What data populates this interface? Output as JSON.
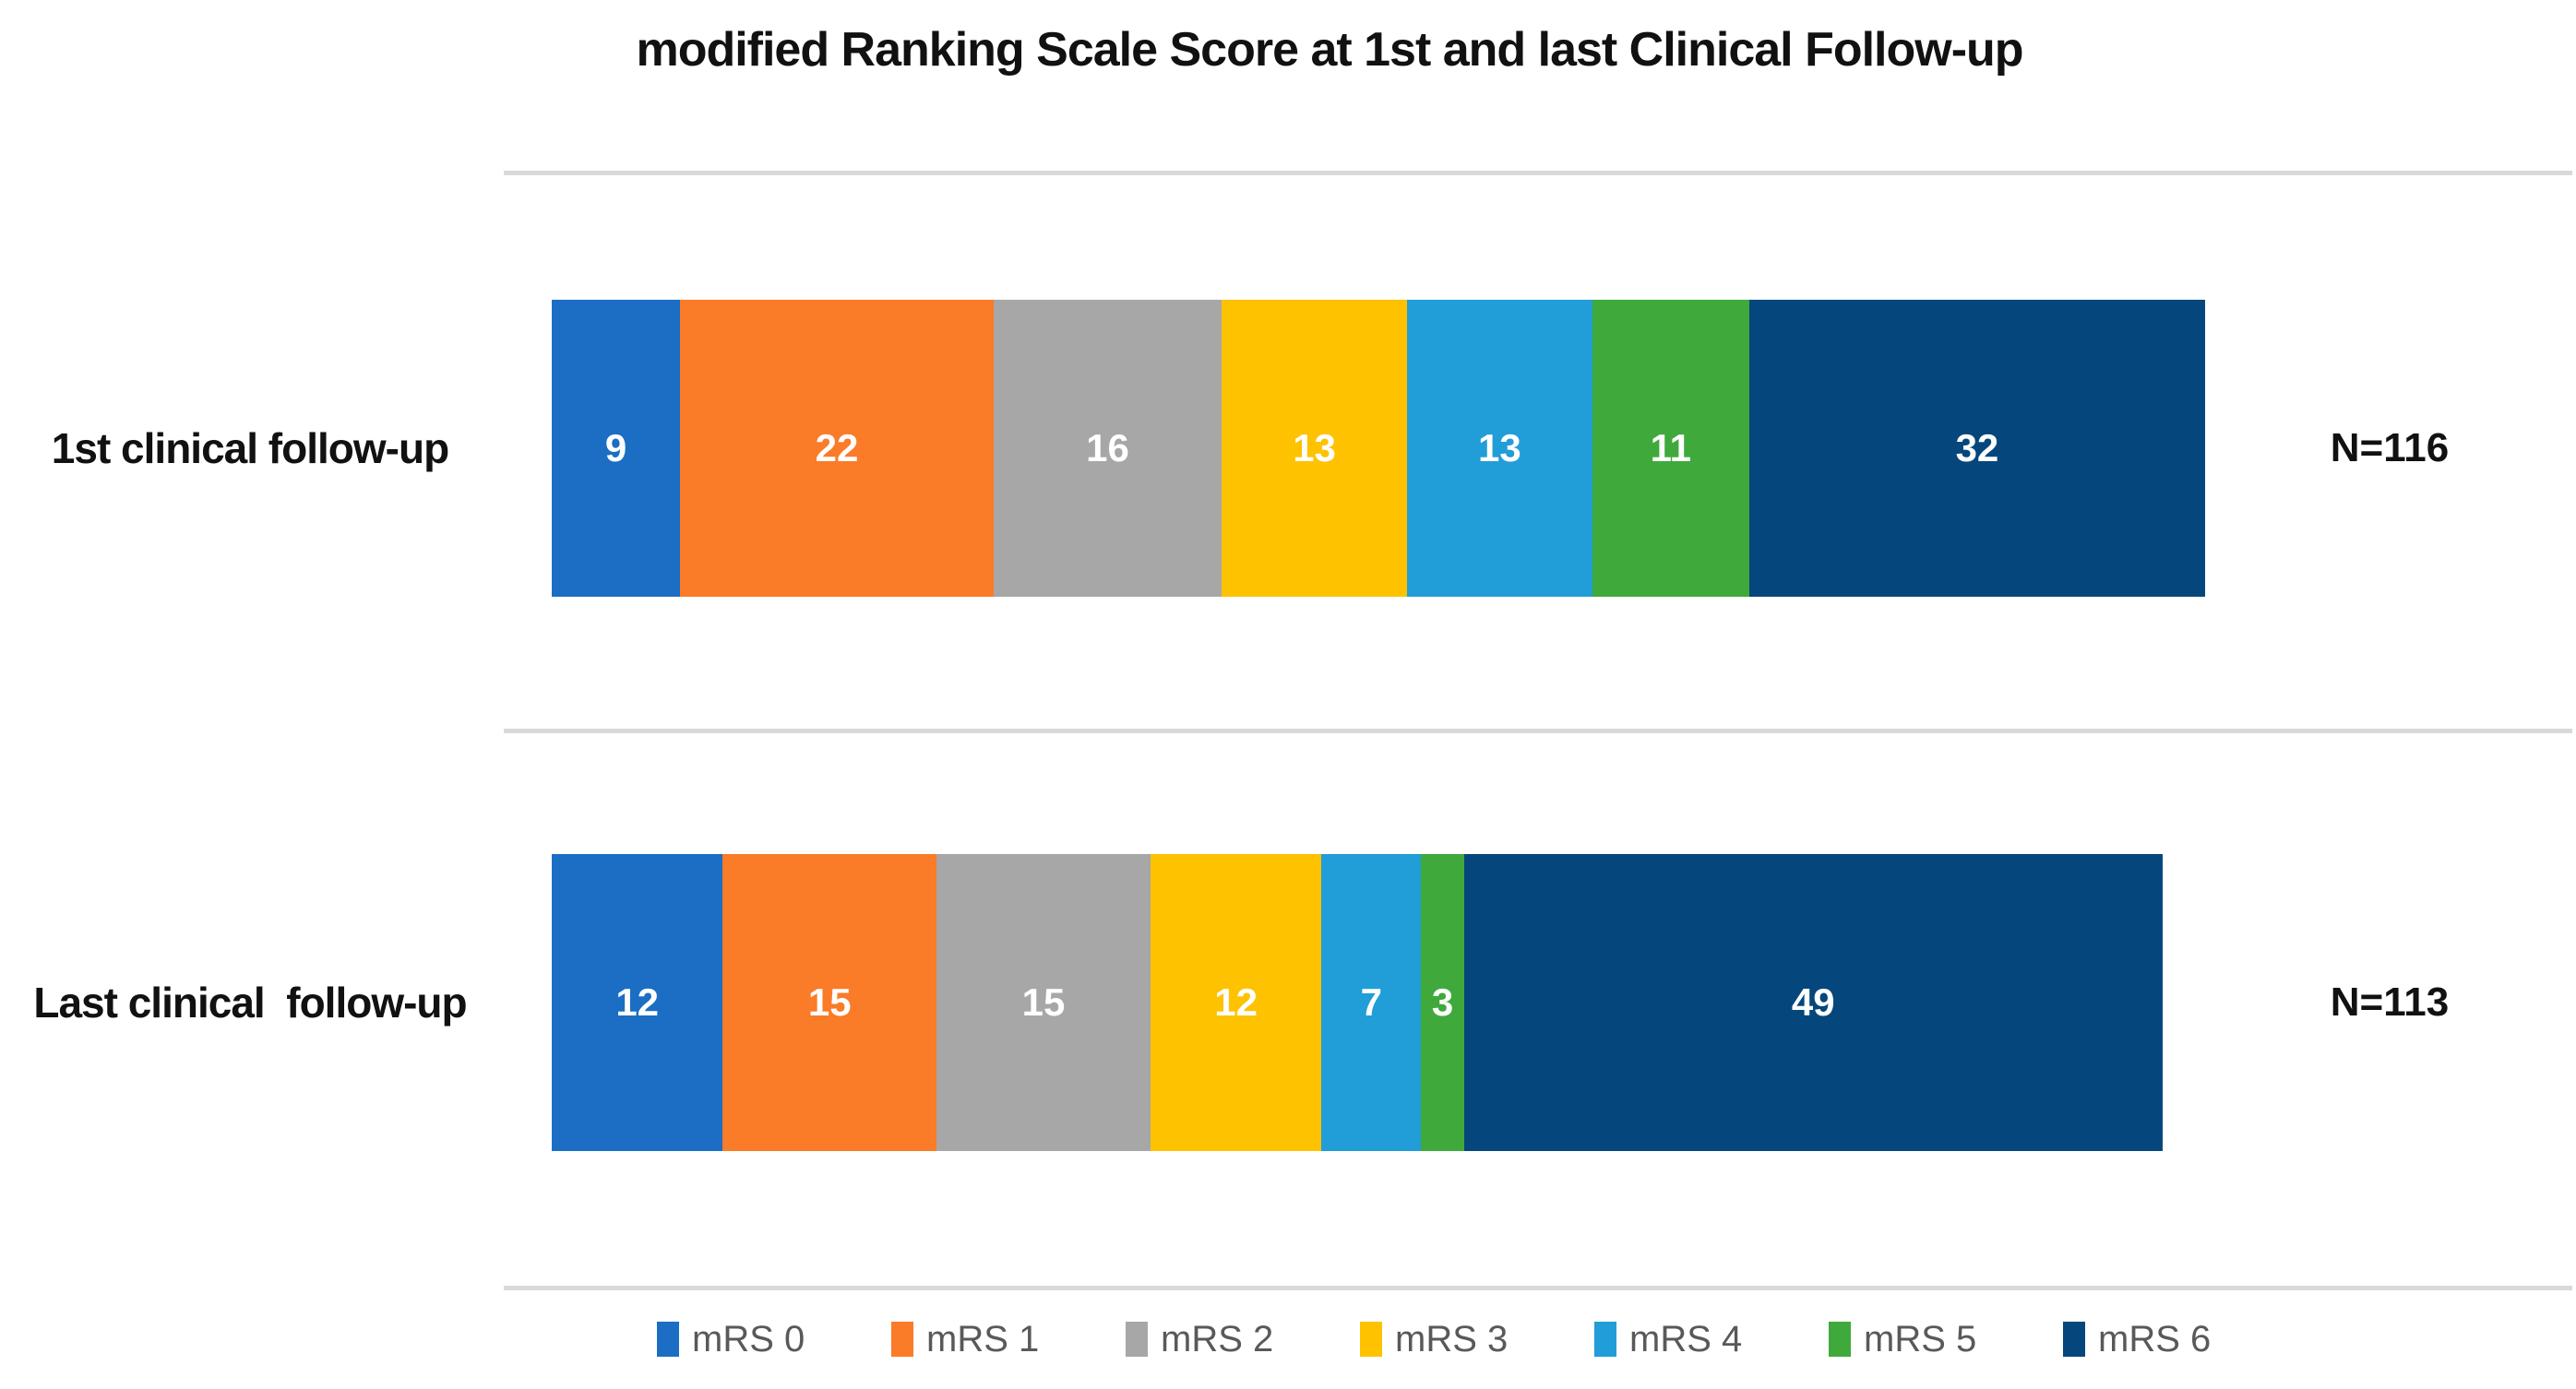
{
  "chart_data": {
    "type": "bar",
    "orientation": "horizontal",
    "stacked": true,
    "title": "modified Ranking Scale Score at 1st and last Clinical Follow-up",
    "categories": [
      "1st clinical follow-up",
      "Last clinical  follow-up"
    ],
    "series": [
      {
        "name": "mRS 0",
        "color": "#1B6EC4",
        "values": [
          9,
          12
        ]
      },
      {
        "name": "mRS 1",
        "color": "#FA7B28",
        "values": [
          22,
          15
        ]
      },
      {
        "name": "mRS 2",
        "color": "#A7A7A7",
        "values": [
          16,
          15
        ]
      },
      {
        "name": "mRS 3",
        "color": "#FEC200",
        "values": [
          13,
          12
        ]
      },
      {
        "name": "mRS 4",
        "color": "#219DD8",
        "values": [
          13,
          7
        ]
      },
      {
        "name": "mRS 5",
        "color": "#3FA93C",
        "values": [
          11,
          3
        ]
      },
      {
        "name": "mRS 6",
        "color": "#05477C",
        "values": [
          32,
          49
        ]
      }
    ],
    "totals": [
      116,
      113
    ],
    "total_labels": [
      "N=116",
      "N=113"
    ],
    "legend": [
      "mRS 0",
      "mRS 1",
      "mRS 2",
      "mRS 3",
      "mRS 4",
      "mRS 5",
      "mRS 6"
    ],
    "legend_position": "bottom",
    "value_label_color": "#FFFFFF",
    "legend_text_color": "#595959",
    "separator_color": "#D9D9D9",
    "xlim": [
      0,
      116
    ],
    "grid": "row separator lines only"
  }
}
